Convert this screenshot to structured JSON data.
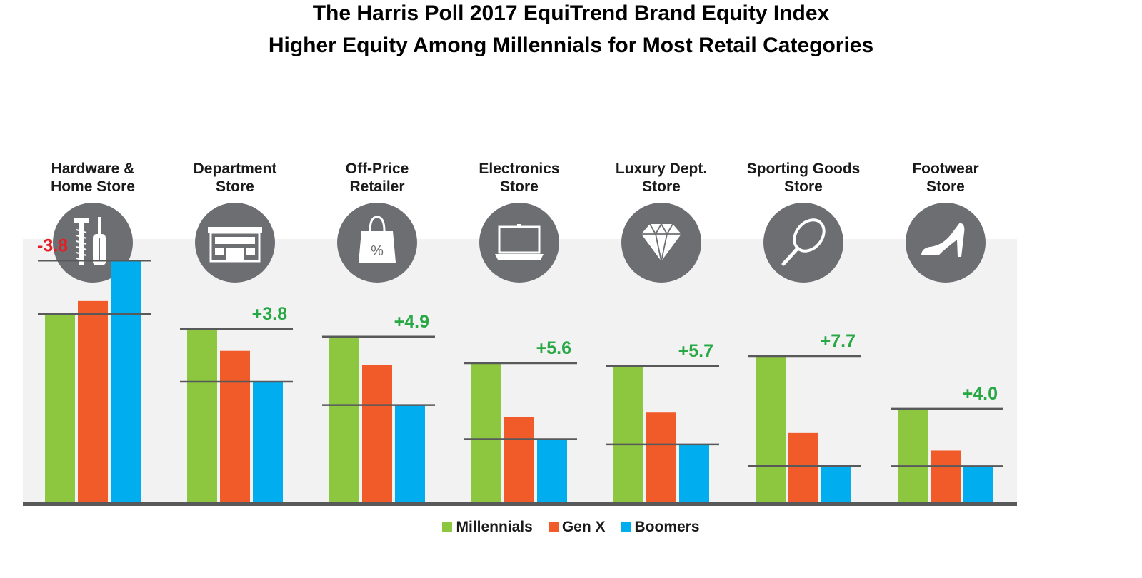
{
  "title": "The Harris Poll 2017 EquiTrend Brand Equity Index",
  "subtitle": "Higher Equity Among Millennials for Most Retail Categories",
  "chart_data": {
    "type": "bar",
    "categories": [
      {
        "line1": "Hardware &",
        "line2": "Home Store",
        "icon": "tools-icon"
      },
      {
        "line1": "Department",
        "line2": "Store",
        "icon": "storefront-icon"
      },
      {
        "line1": "Off-Price",
        "line2": "Retailer",
        "icon": "shopping-bag-percent-icon"
      },
      {
        "line1": "Electronics",
        "line2": "Store",
        "icon": "laptop-icon"
      },
      {
        "line1": "Luxury Dept.",
        "line2": "Store",
        "icon": "diamond-icon"
      },
      {
        "line1": "Sporting Goods",
        "line2": "Store",
        "icon": "tennis-racket-icon"
      },
      {
        "line1": "Footwear",
        "line2": "Store",
        "icon": "high-heel-icon"
      }
    ],
    "series": [
      {
        "name": "Millennials",
        "color": "#8dc63f",
        "values": [
          39.7,
          36.5,
          34.9,
          29.3,
          28.7,
          30.8,
          19.7
        ]
      },
      {
        "name": "Gen X",
        "color": "#f15a29",
        "values": [
          42.4,
          31.9,
          29.0,
          18.0,
          18.9,
          14.6,
          10.9
        ]
      },
      {
        "name": "Boomers",
        "color": "#00aeef",
        "values": [
          50.9,
          25.4,
          20.5,
          13.3,
          12.2,
          7.7,
          7.6
        ]
      }
    ],
    "differences": [
      "-3.8",
      "+3.8",
      "+4.9",
      "+5.6",
      "+5.7",
      "+7.7",
      "+4.0"
    ],
    "difference_colors": {
      "negative": "#e31e24",
      "positive": "#27a844"
    },
    "ylim": [
      0,
      55
    ],
    "legend_position": "bottom-center",
    "icon_circle_color": "#6d6e71",
    "panel_color": "#f2f2f2",
    "axis_color": "#58595b"
  }
}
